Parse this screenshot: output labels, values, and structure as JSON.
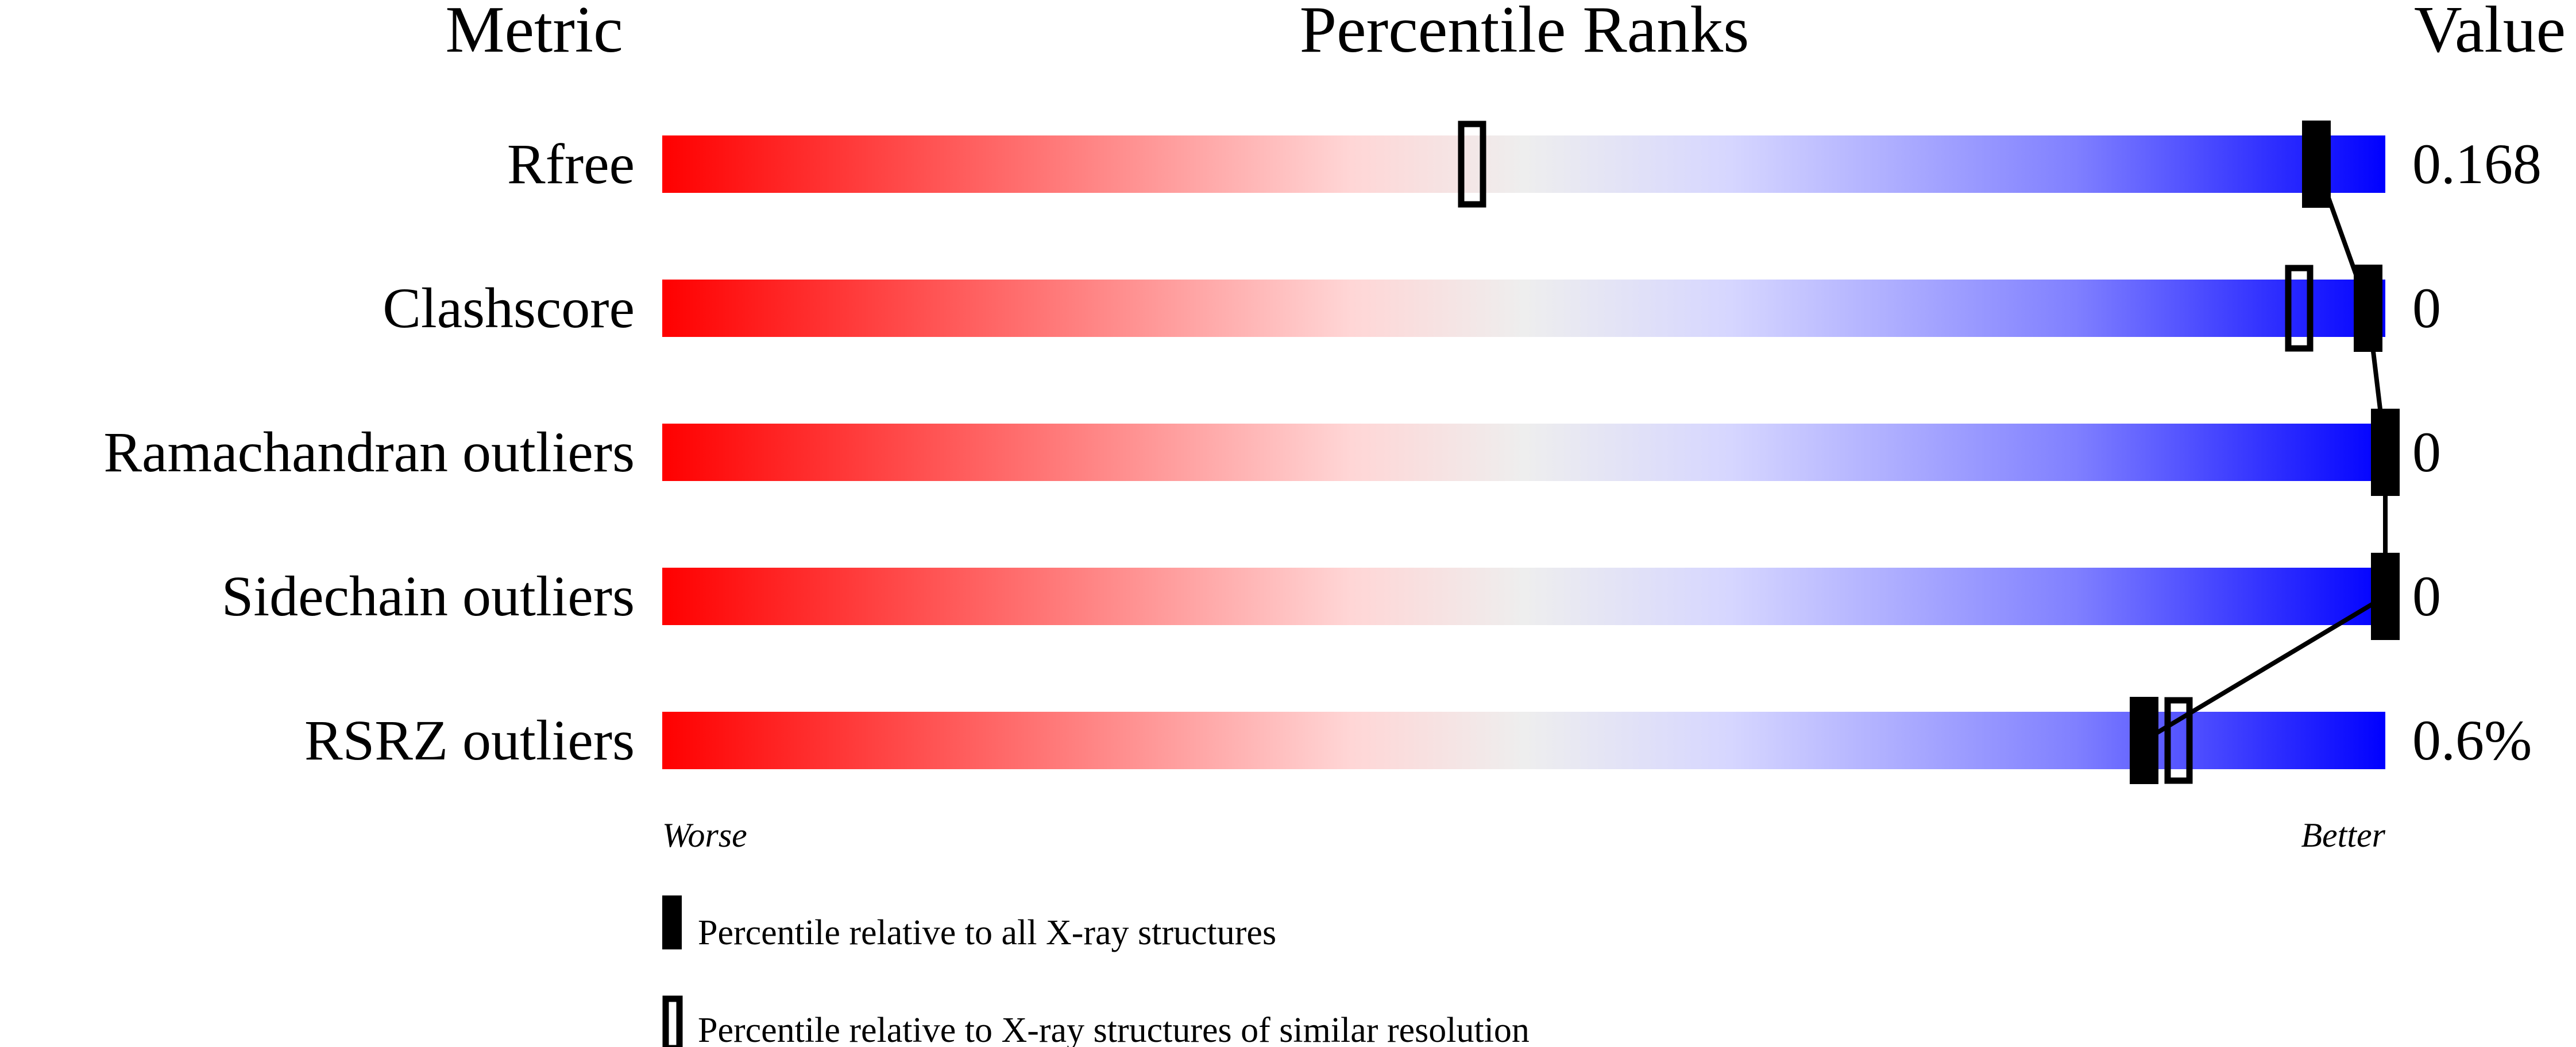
{
  "chart_data": {
    "type": "percentile-bar",
    "headers": {
      "metric": "Metric",
      "ranks": "Percentile Ranks",
      "value": "Value"
    },
    "xlim": [
      0,
      100
    ],
    "gradient_colors": [
      "#ff0000",
      "#ff6a6a",
      "#ffd6d6",
      "#eeeeee",
      "#d6d6ff",
      "#8080ff",
      "#0000ff"
    ],
    "metrics": [
      {
        "name": "Rfree",
        "value": "0.168",
        "all_xray_percentile": 96,
        "similar_resolution_percentile": 47
      },
      {
        "name": "Clashscore",
        "value": "0",
        "all_xray_percentile": 99,
        "similar_resolution_percentile": 95
      },
      {
        "name": "Ramachandran outliers",
        "value": "0",
        "all_xray_percentile": 100,
        "similar_resolution_percentile": null
      },
      {
        "name": "Sidechain outliers",
        "value": "0",
        "all_xray_percentile": 100,
        "similar_resolution_percentile": null
      },
      {
        "name": "RSRZ outliers",
        "value": "0.6%",
        "all_xray_percentile": 86,
        "similar_resolution_percentile": 88
      }
    ],
    "axis_labels": {
      "left": "Worse",
      "right": "Better"
    },
    "legend": {
      "filled": "Percentile relative to all X-ray structures",
      "open": "Percentile relative to X-ray structures of similar resolution"
    }
  }
}
